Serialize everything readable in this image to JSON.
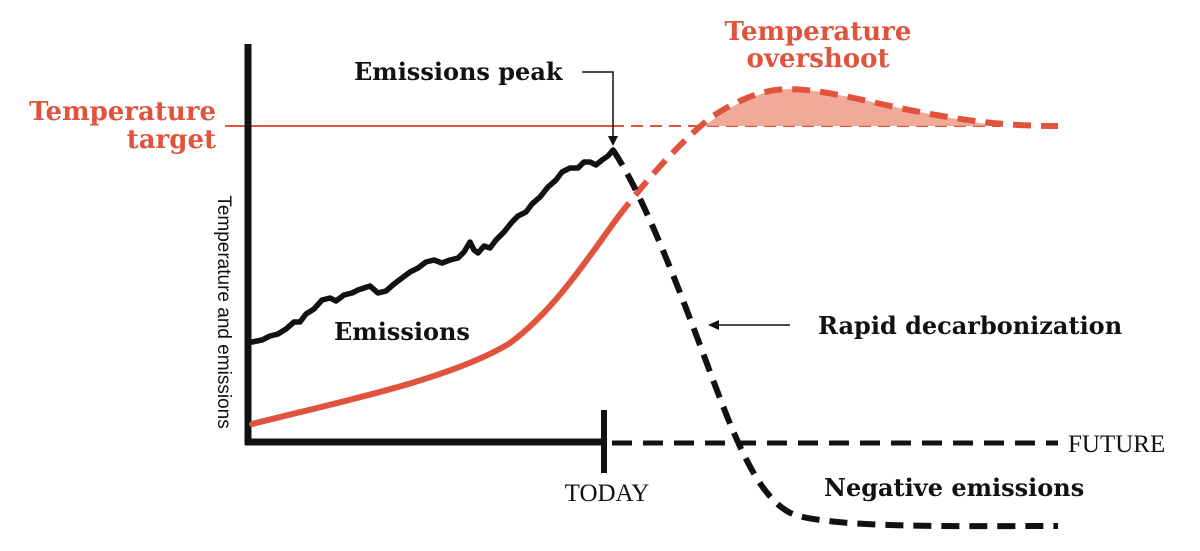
{
  "labels": {
    "temperature_target": [
      "Temperature",
      "target"
    ],
    "temperature_overshoot": [
      "Temperature",
      "overshoot"
    ],
    "emissions_peak": "Emissions peak",
    "emissions": "Emissions",
    "rapid_decarbonization": "Rapid decarbonization",
    "negative_emissions": "Negative emissions",
    "today": "TODAY",
    "future": "FUTURE",
    "y_axis": "Temperature and emissions"
  },
  "colors": {
    "temperature": "#e0533d",
    "overshoot_fill": "#f0a08e",
    "emissions": "#111111",
    "axis": "#111111"
  }
}
